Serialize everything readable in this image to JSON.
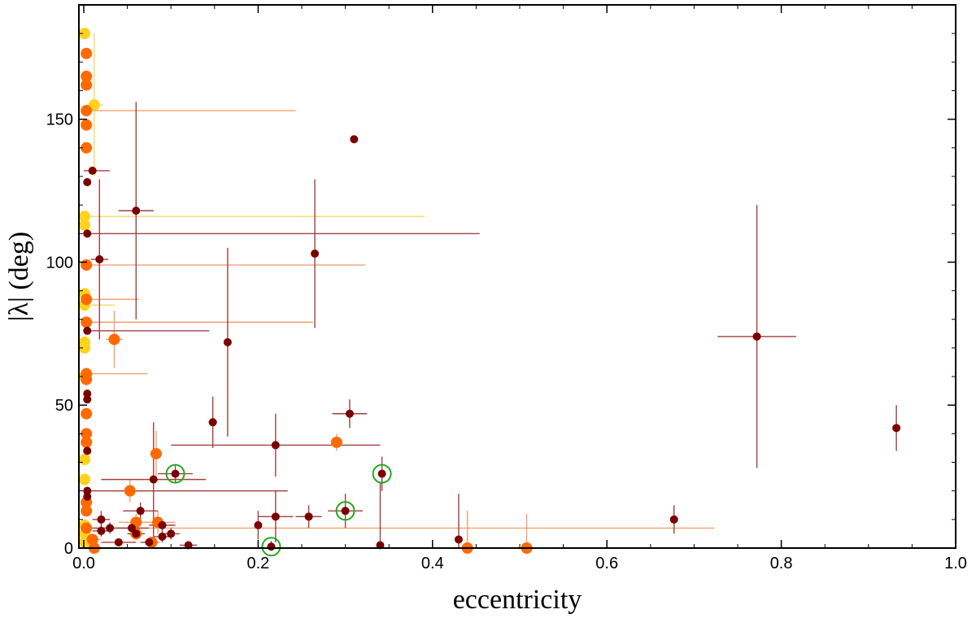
{
  "chart_data": {
    "type": "scatter",
    "xlabel": "eccentricity",
    "ylabel": "|λ| (deg)",
    "xlim": [
      0,
      1.0
    ],
    "ylim": [
      0,
      190
    ],
    "x_ticks": [
      "0.0",
      "0.2",
      "0.4",
      "0.6",
      "0.8",
      "1.0"
    ],
    "y_ticks": [
      "0",
      "50",
      "100",
      "150"
    ],
    "x_tick_values": [
      0,
      0.2,
      0.4,
      0.6,
      0.8,
      1.0
    ],
    "y_tick_values": [
      0,
      50,
      100,
      150
    ],
    "grid": false,
    "colors": {
      "dark": "#7a0000",
      "dark_err": "#a04040",
      "orange": "#ff6a00",
      "orange_err": "#f4a070",
      "yellow": "#ffd21e",
      "yellow_err": "#f5d86a",
      "highlight_ring": "#22aa22"
    },
    "series": [
      {
        "color_key": "dark",
        "points": [
          {
            "x": 0.31,
            "y": 143,
            "xerr": 0.0,
            "yerr": 1
          },
          {
            "x": 0.01,
            "y": 132,
            "xerr": 0.02,
            "yerr": 0
          },
          {
            "x": 0.004,
            "y": 128
          },
          {
            "x": 0.06,
            "y": 118,
            "xerr": 0.02,
            "yerr": 38
          },
          {
            "x": 0.004,
            "y": 110,
            "xerr": 0.45,
            "yerr": 0
          },
          {
            "x": 0.265,
            "y": 103,
            "xerr": 0.0,
            "yerr": 26
          },
          {
            "x": 0.018,
            "y": 101,
            "xerr": 0.01,
            "yerr": 28
          },
          {
            "x": 0.004,
            "y": 76,
            "xerr": 0.14,
            "yerr": 0
          },
          {
            "x": 0.165,
            "y": 72,
            "xerr": 0.0,
            "yerr": 33
          },
          {
            "x": 0.772,
            "y": 74,
            "xerr": 0.045,
            "yerr": 46
          },
          {
            "x": 0.004,
            "y": 54
          },
          {
            "x": 0.004,
            "y": 52
          },
          {
            "x": 0.305,
            "y": 47,
            "xerr": 0.02,
            "yerr": 5
          },
          {
            "x": 0.148,
            "y": 44,
            "xerr": 0.005,
            "yerr": 9
          },
          {
            "x": 0.932,
            "y": 42,
            "xerr": 0.0,
            "yerr": 8
          },
          {
            "x": 0.22,
            "y": 36,
            "xerr": 0.12,
            "yerr": 11
          },
          {
            "x": 0.004,
            "y": 34
          },
          {
            "x": 0.105,
            "y": 26,
            "xerr": 0.02,
            "yerr": 3,
            "highlight": true
          },
          {
            "x": 0.342,
            "y": 26,
            "xerr": 0.0,
            "yerr": 6,
            "highlight": true
          },
          {
            "x": 0.08,
            "y": 24,
            "xerr": 0.06,
            "yerr": 20
          },
          {
            "x": 0.004,
            "y": 20,
            "xerr": 0.23,
            "yerr": 0
          },
          {
            "x": 0.004,
            "y": 18
          },
          {
            "x": 0.3,
            "y": 13,
            "xerr": 0.02,
            "yerr": 6,
            "highlight": true
          },
          {
            "x": 0.22,
            "y": 11,
            "xerr": 0.02,
            "yerr": 9
          },
          {
            "x": 0.258,
            "y": 11,
            "xerr": 0.015,
            "yerr": 4
          },
          {
            "x": 0.677,
            "y": 10,
            "xerr": 0.0,
            "yerr": 5
          },
          {
            "x": 0.02,
            "y": 10,
            "xerr": 0.01,
            "yerr": 3
          },
          {
            "x": 0.065,
            "y": 13,
            "xerr": 0.02,
            "yerr": 3
          },
          {
            "x": 0.2,
            "y": 8,
            "xerr": 0.0,
            "yerr": 5
          },
          {
            "x": 0.09,
            "y": 8,
            "xerr": 0.015,
            "yerr": 2
          },
          {
            "x": 0.055,
            "y": 7,
            "xerr": 0.02,
            "yerr": 3
          },
          {
            "x": 0.03,
            "y": 7,
            "xerr": 0.03,
            "yerr": 2
          },
          {
            "x": 0.1,
            "y": 5,
            "xerr": 0.01,
            "yerr": 2
          },
          {
            "x": 0.06,
            "y": 5,
            "xerr": 0.01,
            "yerr": 2
          },
          {
            "x": 0.02,
            "y": 6,
            "xerr": 0.01,
            "yerr": 2
          },
          {
            "x": 0.43,
            "y": 3,
            "xerr": 0.0,
            "yerr": 16
          },
          {
            "x": 0.09,
            "y": 4,
            "xerr": 0.01,
            "yerr": 2
          },
          {
            "x": 0.04,
            "y": 2,
            "xerr": 0.02,
            "yerr": 1
          },
          {
            "x": 0.075,
            "y": 2,
            "xerr": 0.01,
            "yerr": 1
          },
          {
            "x": 0.34,
            "y": 1,
            "xerr": 0.0,
            "yerr": 22
          },
          {
            "x": 0.12,
            "y": 1,
            "xerr": 0.01,
            "yerr": 1
          },
          {
            "x": 0.215,
            "y": 0.5,
            "xerr": 0.0,
            "yerr": 2,
            "highlight": true
          }
        ]
      },
      {
        "color_key": "orange",
        "points": [
          {
            "x": 0.003,
            "y": 173
          },
          {
            "x": 0.003,
            "y": 165
          },
          {
            "x": 0.003,
            "y": 162
          },
          {
            "x": 0.003,
            "y": 153,
            "xerr": 0.24,
            "yerr": 0
          },
          {
            "x": 0.003,
            "y": 148
          },
          {
            "x": 0.003,
            "y": 140
          },
          {
            "x": 0.003,
            "y": 99,
            "xerr": 0.32,
            "yerr": 0
          },
          {
            "x": 0.003,
            "y": 87,
            "xerr": 0.06,
            "yerr": 0
          },
          {
            "x": 0.003,
            "y": 79,
            "xerr": 0.26,
            "yerr": 0
          },
          {
            "x": 0.035,
            "y": 73,
            "xerr": 0.01,
            "yerr": 10
          },
          {
            "x": 0.003,
            "y": 61,
            "xerr": 0.07,
            "yerr": 0
          },
          {
            "x": 0.003,
            "y": 59
          },
          {
            "x": 0.003,
            "y": 47
          },
          {
            "x": 0.003,
            "y": 40
          },
          {
            "x": 0.003,
            "y": 37
          },
          {
            "x": 0.29,
            "y": 37,
            "xerr": 0.0,
            "yerr": 3
          },
          {
            "x": 0.083,
            "y": 33,
            "xerr": 0.0,
            "yerr": 8
          },
          {
            "x": 0.053,
            "y": 20,
            "xerr": 0.02,
            "yerr": 4
          },
          {
            "x": 0.003,
            "y": 16
          },
          {
            "x": 0.003,
            "y": 13
          },
          {
            "x": 0.06,
            "y": 9,
            "xerr": 0.02,
            "yerr": 3
          },
          {
            "x": 0.085,
            "y": 9,
            "xerr": 0.02,
            "yerr": 4
          },
          {
            "x": 0.003,
            "y": 7,
            "xerr": 0.72,
            "yerr": 0
          },
          {
            "x": 0.06,
            "y": 5,
            "xerr": 0.01,
            "yerr": 2
          },
          {
            "x": 0.01,
            "y": 3,
            "xerr": 0.01,
            "yerr": 2
          },
          {
            "x": 0.078,
            "y": 2,
            "xerr": 0.01,
            "yerr": 2
          },
          {
            "x": 0.44,
            "y": 0,
            "xerr": 0.0,
            "yerr": 13
          },
          {
            "x": 0.508,
            "y": 0,
            "xerr": 0.0,
            "yerr": 12
          },
          {
            "x": 0.012,
            "y": 0,
            "xerr": 0.005,
            "yerr": 1
          }
        ]
      },
      {
        "color_key": "yellow",
        "points": [
          {
            "x": 0.001,
            "y": 180
          },
          {
            "x": 0.012,
            "y": 155,
            "xerr": 0.01,
            "yerr": 25
          },
          {
            "x": 0.001,
            "y": 116,
            "xerr": 0.39,
            "yerr": 0
          },
          {
            "x": 0.001,
            "y": 113
          },
          {
            "x": 0.001,
            "y": 89
          },
          {
            "x": 0.001,
            "y": 85,
            "xerr": 0.035,
            "yerr": 0
          },
          {
            "x": 0.001,
            "y": 72
          },
          {
            "x": 0.001,
            "y": 70
          },
          {
            "x": 0.001,
            "y": 60
          },
          {
            "x": 0.001,
            "y": 31
          },
          {
            "x": 0.001,
            "y": 24
          },
          {
            "x": 0.001,
            "y": 8
          },
          {
            "x": 0.001,
            "y": 5
          },
          {
            "x": 0.001,
            "y": 2
          }
        ]
      }
    ]
  }
}
